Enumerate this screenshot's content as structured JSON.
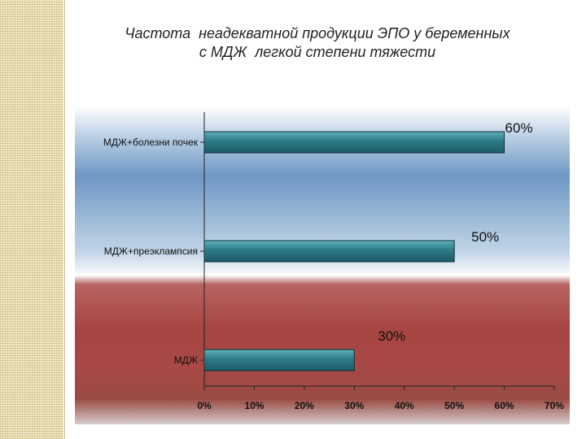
{
  "title": {
    "line1": "Частота  неадекватной продукции ЭПО у беременных",
    "line2": "с МДЖ  легкой степени тяжести"
  },
  "colors": {
    "bar": "#2c7a88",
    "bar_highlight": "#5fb0bd",
    "axis": "#222222"
  },
  "chart_data": {
    "type": "bar",
    "orientation": "horizontal",
    "title": "Частота  неадекватной продукции ЭПО у беременных с МДЖ  легкой степени тяжести",
    "categories": [
      "МДЖ+болезни почек",
      "МДЖ+преэклампсия",
      "МДЖ"
    ],
    "values": [
      60,
      50,
      30
    ],
    "data_labels": [
      "60%",
      "50%",
      "30%"
    ],
    "xlim": [
      0,
      70
    ],
    "x_ticks": [
      "0%",
      "10%",
      "20%",
      "30%",
      "40%",
      "50%",
      "60%",
      "70%"
    ],
    "xlabel": "",
    "ylabel": "",
    "grid": false,
    "legend": "none"
  }
}
